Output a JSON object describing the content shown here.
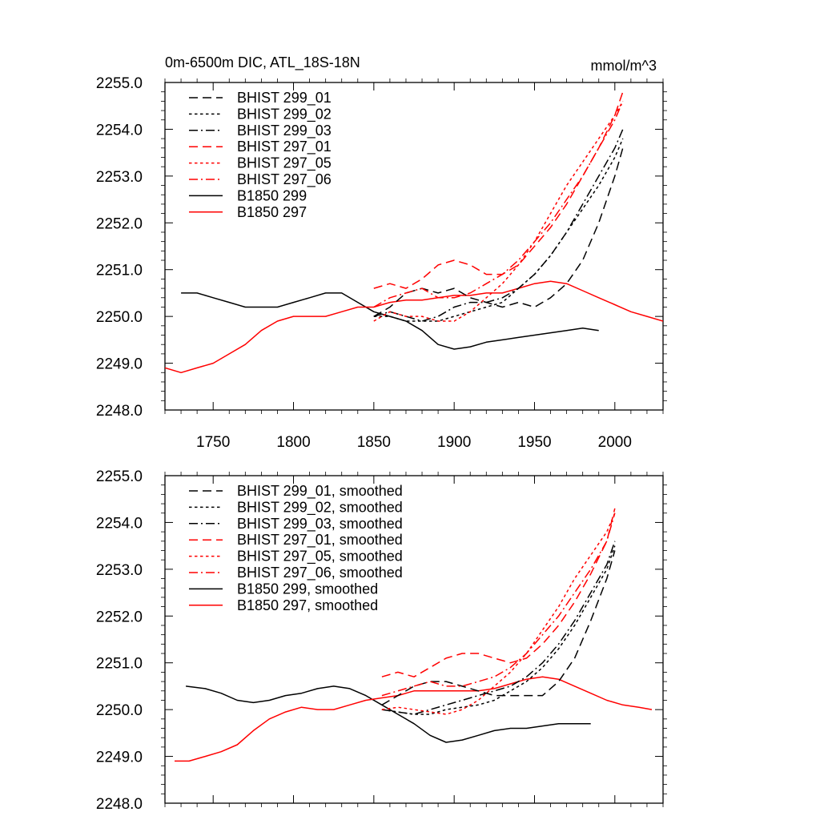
{
  "chart_data": [
    {
      "type": "line",
      "title": "0m-6500m DIC, ATL_18S-18N",
      "units": "mmol/m^3",
      "xlim": [
        1720,
        2030
      ],
      "ylim": [
        2248.0,
        2255.0
      ],
      "x_ticks": [
        1750,
        1800,
        1850,
        1900,
        1950,
        2000
      ],
      "y_ticks": [
        "2248.0",
        "2249.0",
        "2250.0",
        "2251.0",
        "2252.0",
        "2253.0",
        "2254.0",
        "2255.0"
      ],
      "x_ticklabels_visible": true,
      "legend_position": "top-left",
      "series": [
        {
          "name": "BHIST 299_01",
          "color": "#000000",
          "dash": "dash",
          "x": [
            1850,
            1860,
            1870,
            1880,
            1890,
            1900,
            1910,
            1920,
            1930,
            1940,
            1950,
            1960,
            1970,
            1980,
            1990,
            2000,
            2005
          ],
          "y": [
            2250.0,
            2250.2,
            2250.5,
            2250.6,
            2250.5,
            2250.6,
            2250.4,
            2250.3,
            2250.2,
            2250.3,
            2250.2,
            2250.4,
            2250.7,
            2251.2,
            2252.0,
            2253.0,
            2253.6
          ]
        },
        {
          "name": "BHIST 299_02",
          "color": "#000000",
          "dash": "dot",
          "x": [
            1850,
            1860,
            1870,
            1880,
            1890,
            1900,
            1910,
            1920,
            1930,
            1940,
            1950,
            1960,
            1970,
            1980,
            1990,
            2000,
            2005
          ],
          "y": [
            2250.0,
            2250.0,
            2249.9,
            2249.9,
            2249.9,
            2250.0,
            2250.1,
            2250.2,
            2250.3,
            2250.6,
            2250.9,
            2251.3,
            2251.8,
            2252.3,
            2252.8,
            2253.4,
            2253.8
          ]
        },
        {
          "name": "BHIST 299_03",
          "color": "#000000",
          "dash": "dashdot",
          "x": [
            1850,
            1860,
            1870,
            1880,
            1890,
            1900,
            1910,
            1920,
            1930,
            1940,
            1950,
            1960,
            1970,
            1980,
            1990,
            2000,
            2005
          ],
          "y": [
            2250.0,
            2250.1,
            2250.0,
            2249.9,
            2250.0,
            2250.2,
            2250.3,
            2250.3,
            2250.4,
            2250.6,
            2250.9,
            2251.3,
            2251.8,
            2252.4,
            2253.0,
            2253.6,
            2254.0
          ]
        },
        {
          "name": "BHIST 297_01",
          "color": "#ff0000",
          "dash": "dash",
          "x": [
            1850,
            1860,
            1870,
            1880,
            1890,
            1900,
            1910,
            1920,
            1930,
            1940,
            1950,
            1960,
            1970,
            1980,
            1990,
            2000,
            2005
          ],
          "y": [
            2250.6,
            2250.7,
            2250.6,
            2250.8,
            2251.1,
            2251.2,
            2251.1,
            2250.9,
            2250.9,
            2251.1,
            2251.5,
            2251.9,
            2252.4,
            2253.0,
            2253.6,
            2254.3,
            2254.8
          ]
        },
        {
          "name": "BHIST 297_05",
          "color": "#ff0000",
          "dash": "dot",
          "x": [
            1850,
            1860,
            1870,
            1880,
            1890,
            1900,
            1910,
            1920,
            1930,
            1940,
            1950,
            1960,
            1970,
            1980,
            1990,
            2000,
            2005
          ],
          "y": [
            2249.9,
            2250.1,
            2250.0,
            2250.0,
            2249.9,
            2249.9,
            2250.1,
            2250.4,
            2250.7,
            2251.1,
            2251.6,
            2252.2,
            2252.8,
            2253.3,
            2253.8,
            2254.3,
            2254.6
          ]
        },
        {
          "name": "BHIST 297_06",
          "color": "#ff0000",
          "dash": "dashdot",
          "x": [
            1850,
            1860,
            1870,
            1880,
            1890,
            1900,
            1910,
            1920,
            1930,
            1940,
            1950,
            1960,
            1970,
            1980,
            1990,
            2000,
            2005
          ],
          "y": [
            2250.2,
            2250.4,
            2250.5,
            2250.6,
            2250.4,
            2250.4,
            2250.5,
            2250.7,
            2250.9,
            2251.2,
            2251.6,
            2252.0,
            2252.5,
            2253.0,
            2253.6,
            2254.2,
            2254.6
          ]
        },
        {
          "name": "B1850 299",
          "color": "#000000",
          "dash": "solid",
          "x": [
            1730,
            1740,
            1750,
            1760,
            1770,
            1780,
            1790,
            1800,
            1810,
            1820,
            1830,
            1840,
            1850,
            1860,
            1870,
            1880,
            1890,
            1900,
            1910,
            1920,
            1930,
            1940,
            1950,
            1960,
            1970,
            1980,
            1990
          ],
          "y": [
            2250.5,
            2250.5,
            2250.4,
            2250.3,
            2250.2,
            2250.2,
            2250.2,
            2250.3,
            2250.4,
            2250.5,
            2250.5,
            2250.3,
            2250.1,
            2250.0,
            2249.9,
            2249.7,
            2249.4,
            2249.3,
            2249.35,
            2249.45,
            2249.5,
            2249.55,
            2249.6,
            2249.65,
            2249.7,
            2249.75,
            2249.7
          ]
        },
        {
          "name": "B1850 297",
          "color": "#ff0000",
          "dash": "solid",
          "x": [
            1720,
            1730,
            1740,
            1750,
            1760,
            1770,
            1780,
            1790,
            1800,
            1810,
            1820,
            1830,
            1840,
            1850,
            1860,
            1870,
            1880,
            1890,
            1900,
            1910,
            1920,
            1930,
            1940,
            1950,
            1960,
            1970,
            1980,
            1990,
            2000,
            2010,
            2020,
            2030
          ],
          "y": [
            2248.9,
            2248.8,
            2248.9,
            2249.0,
            2249.2,
            2249.4,
            2249.7,
            2249.9,
            2250.0,
            2250.0,
            2250.0,
            2250.1,
            2250.2,
            2250.2,
            2250.3,
            2250.35,
            2250.35,
            2250.4,
            2250.45,
            2250.45,
            2250.5,
            2250.5,
            2250.6,
            2250.7,
            2250.75,
            2250.7,
            2250.55,
            2250.4,
            2250.25,
            2250.1,
            2250.0,
            2249.9
          ]
        }
      ]
    },
    {
      "type": "line",
      "title": "",
      "units": "",
      "xlim": [
        1720,
        2030
      ],
      "ylim": [
        2248.0,
        2255.0
      ],
      "x_ticks": [
        1750,
        1800,
        1850,
        1900,
        1950,
        2000
      ],
      "y_ticks": [
        "2248.0",
        "2249.0",
        "2250.0",
        "2251.0",
        "2252.0",
        "2253.0",
        "2254.0",
        "2255.0"
      ],
      "x_ticklabels_visible": false,
      "legend_position": "top-left",
      "series": [
        {
          "name": "BHIST 299_01, smoothed",
          "color": "#000000",
          "dash": "dash",
          "x": [
            1855,
            1865,
            1875,
            1885,
            1895,
            1905,
            1915,
            1925,
            1935,
            1945,
            1955,
            1965,
            1975,
            1985,
            1995,
            2000
          ],
          "y": [
            2250.1,
            2250.3,
            2250.5,
            2250.6,
            2250.6,
            2250.5,
            2250.4,
            2250.3,
            2250.3,
            2250.3,
            2250.3,
            2250.6,
            2251.1,
            2251.9,
            2252.8,
            2253.4
          ]
        },
        {
          "name": "BHIST 299_02, smoothed",
          "color": "#000000",
          "dash": "dot",
          "x": [
            1855,
            1865,
            1875,
            1885,
            1895,
            1905,
            1915,
            1925,
            1935,
            1945,
            1955,
            1965,
            1975,
            1985,
            1995,
            2000
          ],
          "y": [
            2250.0,
            2249.95,
            2249.9,
            2249.9,
            2250.0,
            2250.05,
            2250.1,
            2250.2,
            2250.4,
            2250.6,
            2250.9,
            2251.3,
            2251.8,
            2252.4,
            2253.0,
            2253.5
          ]
        },
        {
          "name": "BHIST 299_03, smoothed",
          "color": "#000000",
          "dash": "dashdot",
          "x": [
            1855,
            1865,
            1875,
            1885,
            1895,
            1905,
            1915,
            1925,
            1935,
            1945,
            1955,
            1965,
            1975,
            1985,
            1995,
            2000
          ],
          "y": [
            2250.0,
            2249.95,
            2249.9,
            2250.0,
            2250.1,
            2250.2,
            2250.3,
            2250.4,
            2250.5,
            2250.7,
            2251.0,
            2251.4,
            2251.9,
            2252.5,
            2253.1,
            2253.6
          ]
        },
        {
          "name": "BHIST 297_01, smoothed",
          "color": "#ff0000",
          "dash": "dash",
          "x": [
            1855,
            1865,
            1875,
            1885,
            1895,
            1905,
            1915,
            1925,
            1935,
            1945,
            1955,
            1965,
            1975,
            1985,
            1995,
            2000
          ],
          "y": [
            2250.7,
            2250.8,
            2250.7,
            2250.9,
            2251.1,
            2251.2,
            2251.2,
            2251.1,
            2251.0,
            2251.1,
            2251.4,
            2251.8,
            2252.3,
            2252.9,
            2253.6,
            2254.3
          ]
        },
        {
          "name": "BHIST 297_05, smoothed",
          "color": "#ff0000",
          "dash": "dot",
          "x": [
            1855,
            1865,
            1875,
            1885,
            1895,
            1905,
            1915,
            1925,
            1935,
            1945,
            1955,
            1965,
            1975,
            1985,
            1995,
            2000
          ],
          "y": [
            2250.0,
            2250.05,
            2250.0,
            2249.95,
            2249.9,
            2250.0,
            2250.2,
            2250.5,
            2250.8,
            2251.2,
            2251.7,
            2252.2,
            2252.8,
            2253.3,
            2253.8,
            2254.2
          ]
        },
        {
          "name": "BHIST 297_06, smoothed",
          "color": "#ff0000",
          "dash": "dashdot",
          "x": [
            1855,
            1865,
            1875,
            1885,
            1895,
            1905,
            1915,
            1925,
            1935,
            1945,
            1955,
            1965,
            1975,
            1985,
            1995,
            2000
          ],
          "y": [
            2250.3,
            2250.4,
            2250.5,
            2250.6,
            2250.5,
            2250.5,
            2250.6,
            2250.7,
            2250.9,
            2251.2,
            2251.6,
            2252.0,
            2252.5,
            2253.0,
            2253.6,
            2254.2
          ]
        },
        {
          "name": "B1850 299, smoothed",
          "color": "#000000",
          "dash": "solid",
          "x": [
            1733,
            1745,
            1755,
            1765,
            1775,
            1785,
            1795,
            1805,
            1815,
            1825,
            1835,
            1845,
            1855,
            1865,
            1875,
            1885,
            1895,
            1905,
            1915,
            1925,
            1935,
            1945,
            1955,
            1965,
            1975,
            1985
          ],
          "y": [
            2250.5,
            2250.45,
            2250.35,
            2250.2,
            2250.15,
            2250.2,
            2250.3,
            2250.35,
            2250.45,
            2250.5,
            2250.45,
            2250.3,
            2250.1,
            2249.9,
            2249.7,
            2249.45,
            2249.3,
            2249.35,
            2249.45,
            2249.55,
            2249.6,
            2249.6,
            2249.65,
            2249.7,
            2249.7,
            2249.7
          ]
        },
        {
          "name": "B1850 297, smoothed",
          "color": "#ff0000",
          "dash": "solid",
          "x": [
            1726,
            1735,
            1745,
            1755,
            1765,
            1775,
            1785,
            1795,
            1805,
            1815,
            1825,
            1835,
            1845,
            1855,
            1865,
            1875,
            1885,
            1895,
            1905,
            1915,
            1925,
            1935,
            1945,
            1955,
            1965,
            1975,
            1985,
            1995,
            2005,
            2015,
            2023
          ],
          "y": [
            2248.9,
            2248.9,
            2249.0,
            2249.1,
            2249.25,
            2249.55,
            2249.8,
            2249.95,
            2250.05,
            2250.0,
            2250.0,
            2250.1,
            2250.2,
            2250.25,
            2250.3,
            2250.4,
            2250.4,
            2250.4,
            2250.4,
            2250.4,
            2250.45,
            2250.55,
            2250.65,
            2250.7,
            2250.65,
            2250.5,
            2250.35,
            2250.2,
            2250.1,
            2250.05,
            2250.0
          ]
        }
      ]
    }
  ]
}
